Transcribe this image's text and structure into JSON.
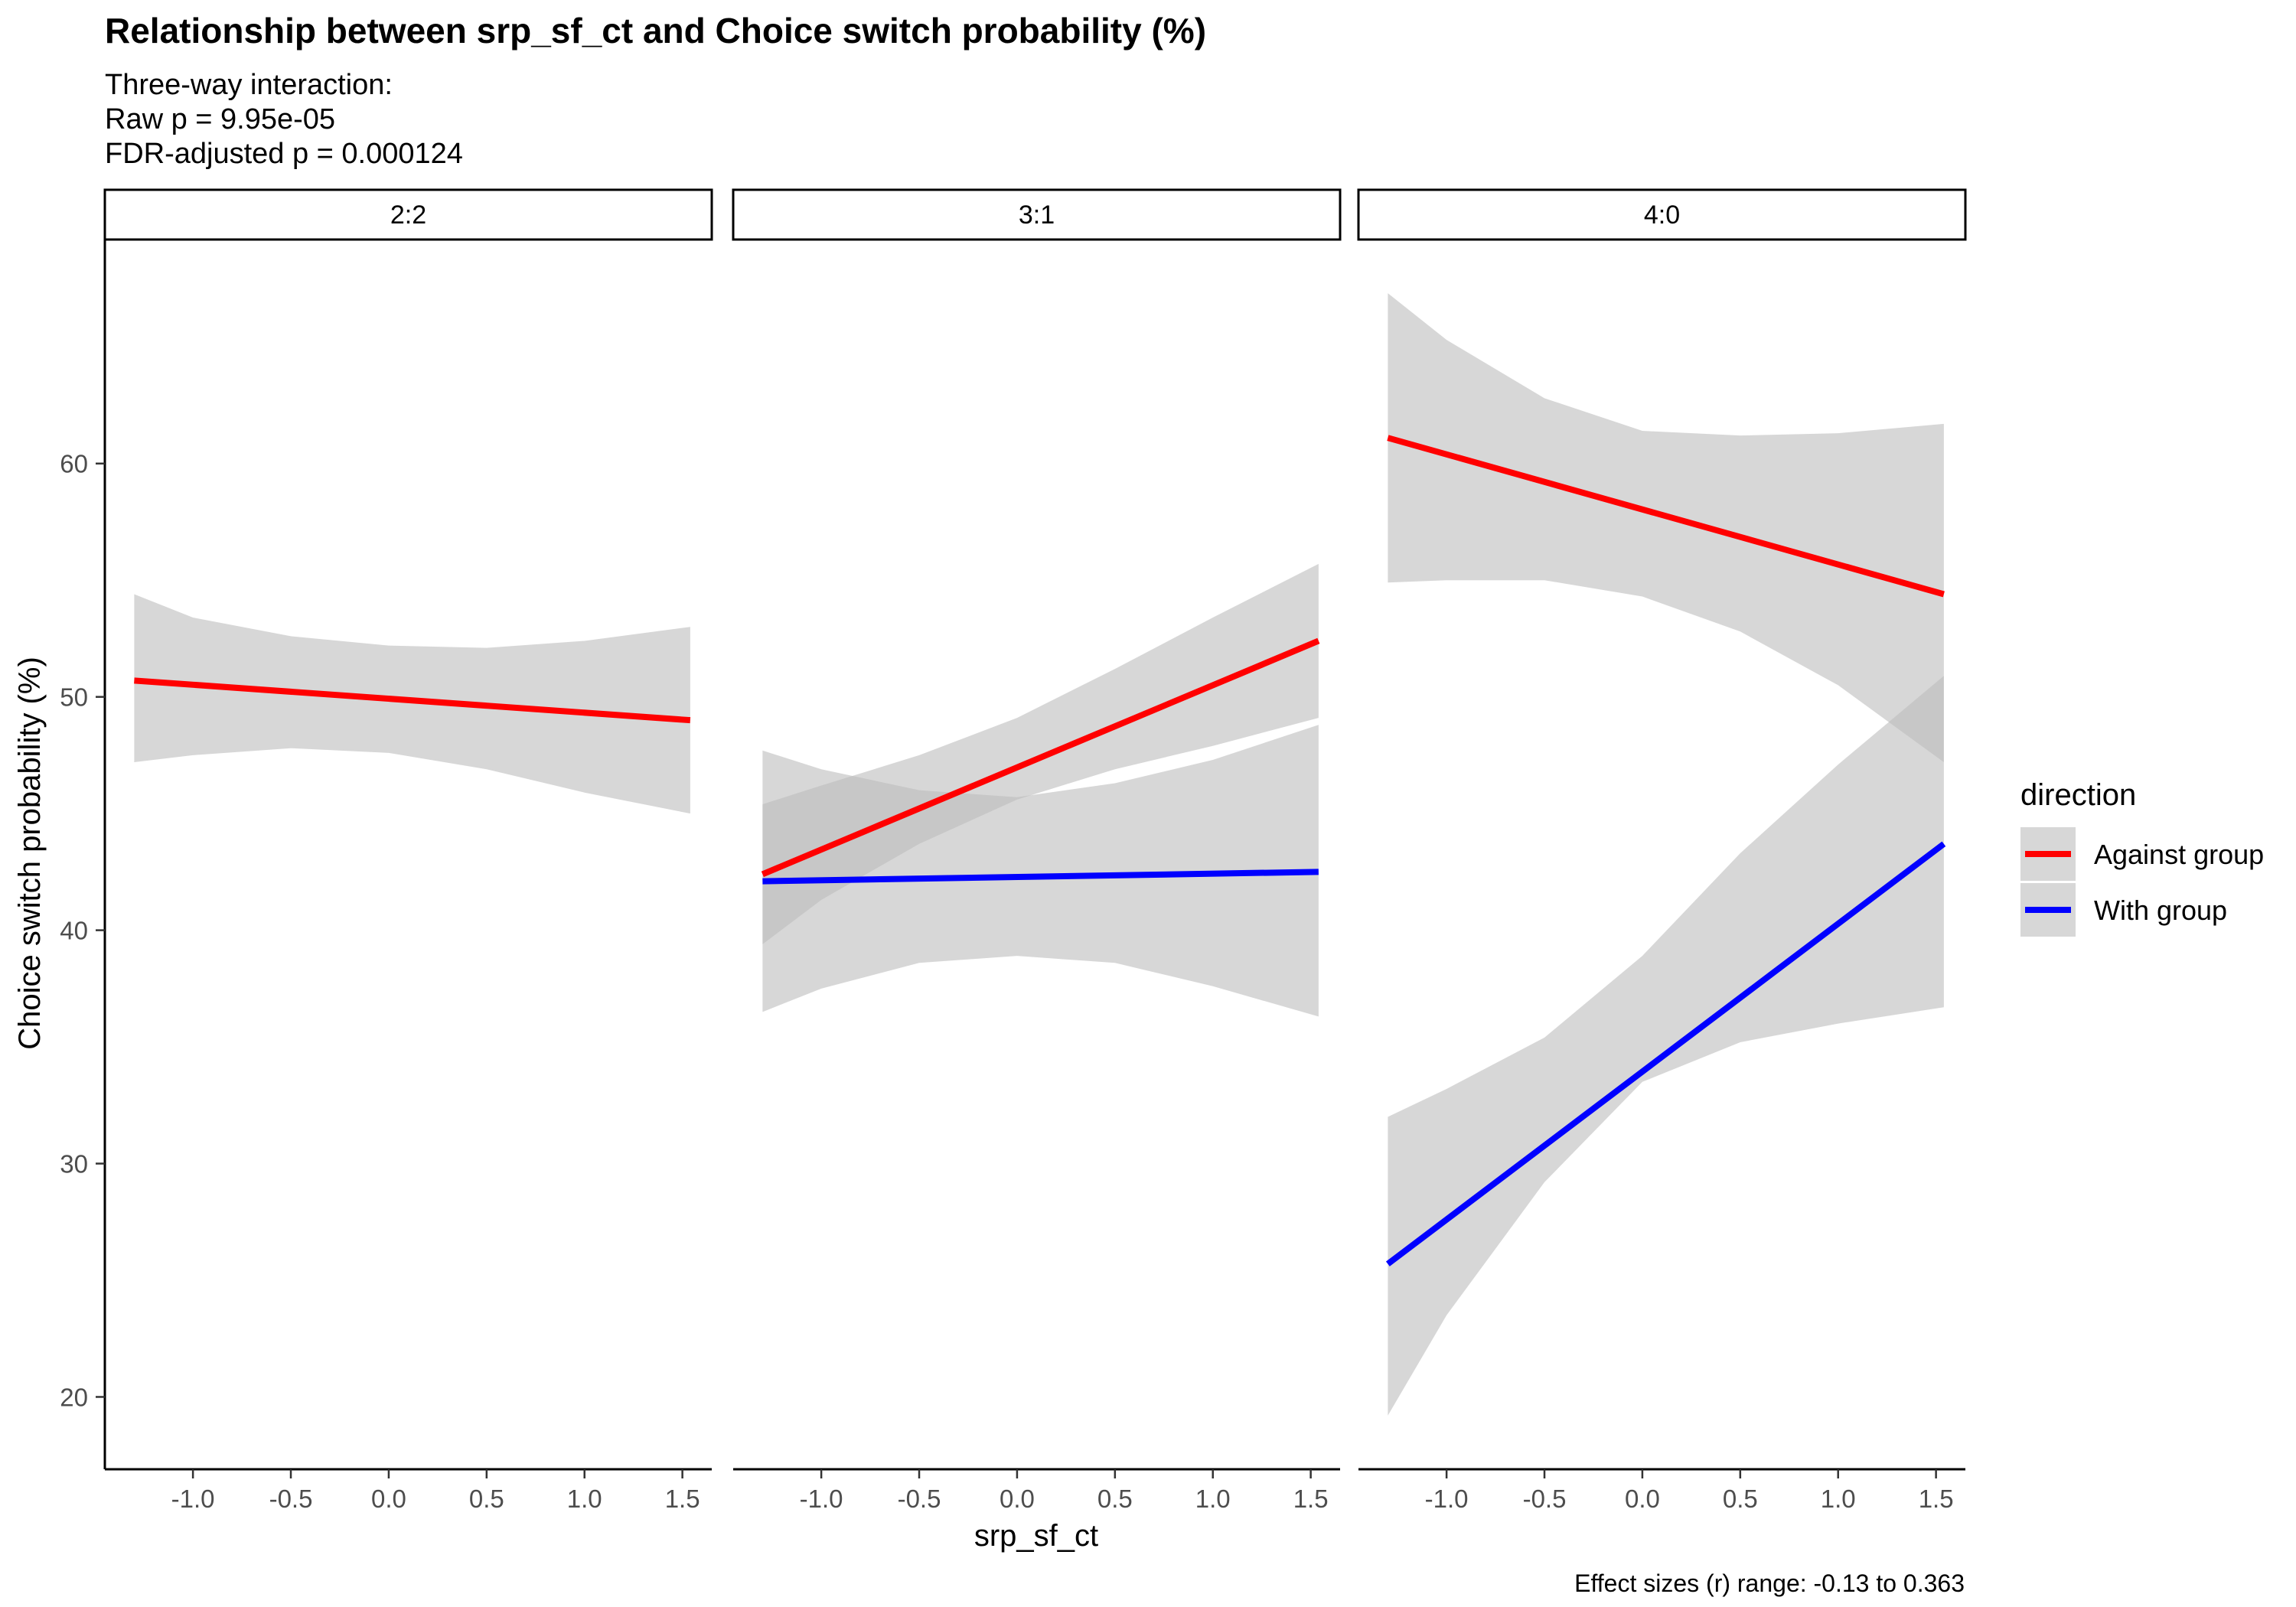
{
  "chart_data": {
    "type": "line",
    "title": "Relationship between srp_sf_ct and Choice switch probability (%)",
    "subtitle": [
      "Three-way interaction:",
      "Raw p = 9.95e-05",
      "FDR-adjusted p = 0.000124"
    ],
    "caption": "Effect sizes (r) range: -0.13 to 0.363",
    "xlabel": "srp_sf_ct",
    "ylabel": "Choice switch probability (%)",
    "xlim": [
      -1.45,
      1.65
    ],
    "ylim": [
      16.9,
      69.6
    ],
    "x_ticks": [
      -1.0,
      -0.5,
      0.0,
      0.5,
      1.0,
      1.5
    ],
    "x_tick_labels": [
      "-1.0",
      "-0.5",
      "0.0",
      "0.5",
      "1.0",
      "1.5"
    ],
    "y_ticks": [
      20,
      30,
      40,
      50,
      60
    ],
    "y_tick_labels": [
      "20",
      "30",
      "40",
      "50",
      "60"
    ],
    "legend": {
      "title": "direction",
      "position": "right",
      "entries": [
        {
          "name": "Against group",
          "color": "#ff0000"
        },
        {
          "name": "With group",
          "color": "#0000ff"
        }
      ]
    },
    "ribbon_color": "#bdbdbd",
    "grid": false,
    "panels": [
      {
        "label": "2:2",
        "series": [
          {
            "name": "Against group",
            "color": "#ff0000",
            "x": [
              -1.3,
              1.54
            ],
            "y": [
              50.7,
              49.0
            ],
            "ci_x": [
              -1.3,
              -1.0,
              -0.5,
              0.0,
              0.5,
              1.0,
              1.54
            ],
            "ci_lower": [
              47.2,
              47.5,
              47.8,
              47.6,
              46.9,
              45.9,
              45.0
            ],
            "ci_upper": [
              54.4,
              53.4,
              52.6,
              52.2,
              52.1,
              52.4,
              53.0
            ]
          }
        ]
      },
      {
        "label": "3:1",
        "series": [
          {
            "name": "Against group",
            "color": "#ff0000",
            "x": [
              -1.3,
              1.54
            ],
            "y": [
              42.4,
              52.4
            ],
            "ci_x": [
              -1.3,
              -1.0,
              -0.5,
              0.0,
              0.5,
              1.0,
              1.54
            ],
            "ci_lower": [
              39.4,
              41.3,
              43.7,
              45.6,
              46.9,
              47.9,
              49.1
            ],
            "ci_upper": [
              45.4,
              46.2,
              47.5,
              49.1,
              51.2,
              53.4,
              55.7
            ]
          },
          {
            "name": "With group",
            "color": "#0000ff",
            "x": [
              -1.3,
              1.54
            ],
            "y": [
              42.1,
              42.5
            ],
            "ci_x": [
              -1.3,
              -1.0,
              -0.5,
              0.0,
              0.5,
              1.0,
              1.54
            ],
            "ci_lower": [
              36.5,
              37.5,
              38.6,
              38.9,
              38.6,
              37.6,
              36.3
            ],
            "ci_upper": [
              47.7,
              46.9,
              46.0,
              45.7,
              46.3,
              47.3,
              48.8
            ]
          }
        ]
      },
      {
        "label": "4:0",
        "series": [
          {
            "name": "Against group",
            "color": "#ff0000",
            "x": [
              -1.3,
              1.54
            ],
            "y": [
              61.1,
              54.4
            ],
            "ci_x": [
              -1.3,
              -1.0,
              -0.5,
              0.0,
              0.5,
              1.0,
              1.54
            ],
            "ci_lower": [
              54.9,
              55.0,
              55.0,
              54.3,
              52.8,
              50.5,
              47.2
            ],
            "ci_upper": [
              67.3,
              65.3,
              62.8,
              61.4,
              61.2,
              61.3,
              61.7
            ]
          },
          {
            "name": "With group",
            "color": "#0000ff",
            "x": [
              -1.3,
              1.54
            ],
            "y": [
              25.7,
              43.7
            ],
            "ci_x": [
              -1.3,
              -1.0,
              -0.5,
              0.0,
              0.5,
              1.0,
              1.54
            ],
            "ci_lower": [
              19.2,
              23.5,
              29.2,
              33.5,
              35.2,
              36.0,
              36.7
            ],
            "ci_upper": [
              32.0,
              33.2,
              35.4,
              38.9,
              43.3,
              47.1,
              50.9
            ]
          }
        ]
      }
    ]
  }
}
